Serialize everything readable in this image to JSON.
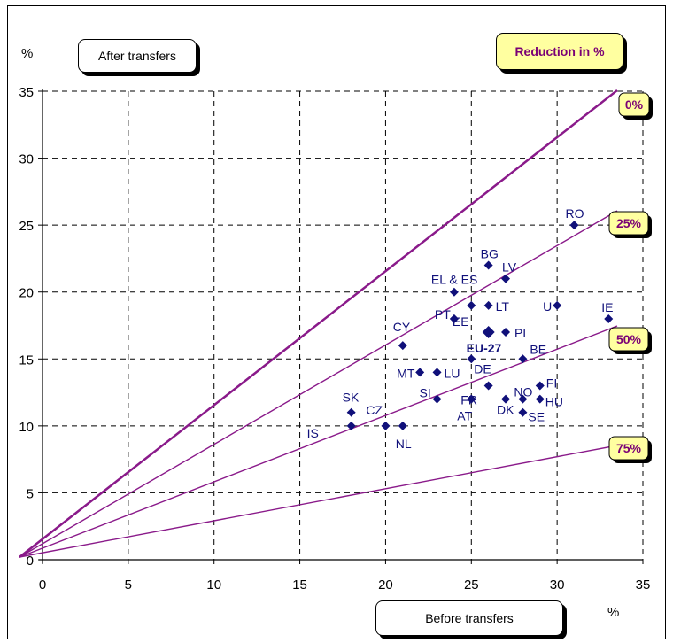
{
  "labels": {
    "y_unit": "%",
    "x_unit": "%",
    "after_transfers": "After transfers",
    "before_transfers": "Before transfers",
    "reduction_title": "Reduction in %"
  },
  "colors": {
    "point": "#10107a",
    "line": "#8a1a8a",
    "tag_fill": "#ffffa0",
    "tag_text": "#7a0075",
    "grid": "#000000"
  },
  "chart_data": {
    "type": "scatter",
    "xlim": [
      0,
      35
    ],
    "ylim": [
      0,
      35
    ],
    "xticks": [
      0,
      5,
      10,
      15,
      20,
      25,
      30,
      35
    ],
    "yticks": [
      0,
      5,
      10,
      15,
      20,
      25,
      30,
      35
    ],
    "grid": true,
    "points": [
      {
        "label": "RO",
        "x": 31,
        "y": 25
      },
      {
        "label": "BG",
        "x": 26,
        "y": 22
      },
      {
        "label": "LV",
        "x": 27,
        "y": 21
      },
      {
        "label": "EL & ES",
        "x": 24,
        "y": 20
      },
      {
        "label": "",
        "x": 25,
        "y": 19
      },
      {
        "label": "LT",
        "x": 26,
        "y": 19
      },
      {
        "label": "U",
        "x": 30,
        "y": 19
      },
      {
        "label": "IE",
        "x": 33,
        "y": 18
      },
      {
        "label": "PT",
        "x": 24,
        "y": 18
      },
      {
        "label": "EE",
        "x": 24,
        "y": 18
      },
      {
        "label": "EU-27",
        "x": 26,
        "y": 17
      },
      {
        "label": "PL",
        "x": 27,
        "y": 17
      },
      {
        "label": "CY",
        "x": 21,
        "y": 16
      },
      {
        "label": "BE",
        "x": 28,
        "y": 15
      },
      {
        "label": "DE",
        "x": 25,
        "y": 15
      },
      {
        "label": "MT",
        "x": 22,
        "y": 14
      },
      {
        "label": "LU",
        "x": 23,
        "y": 14
      },
      {
        "label": "FI",
        "x": 29,
        "y": 13
      },
      {
        "label": "NO",
        "x": 28,
        "y": 12
      },
      {
        "label": "",
        "x": 26,
        "y": 13
      },
      {
        "label": "SI",
        "x": 23,
        "y": 12
      },
      {
        "label": "FR",
        "x": 25,
        "y": 12
      },
      {
        "label": "AT",
        "x": 25,
        "y": 12
      },
      {
        "label": "DK",
        "x": 27,
        "y": 12
      },
      {
        "label": "HU",
        "x": 29,
        "y": 12
      },
      {
        "label": "SE",
        "x": 28,
        "y": 11
      },
      {
        "label": "SK",
        "x": 18,
        "y": 11
      },
      {
        "label": "CZ",
        "x": 20,
        "y": 10
      },
      {
        "label": "IS",
        "x": 18,
        "y": 10
      },
      {
        "label": "NL",
        "x": 21,
        "y": 10
      }
    ],
    "reference_lines": [
      {
        "label": "0%",
        "reduction": 0
      },
      {
        "label": "25%",
        "reduction": 25
      },
      {
        "label": "50%",
        "reduction": 50
      },
      {
        "label": "75%",
        "reduction": 75
      }
    ]
  }
}
